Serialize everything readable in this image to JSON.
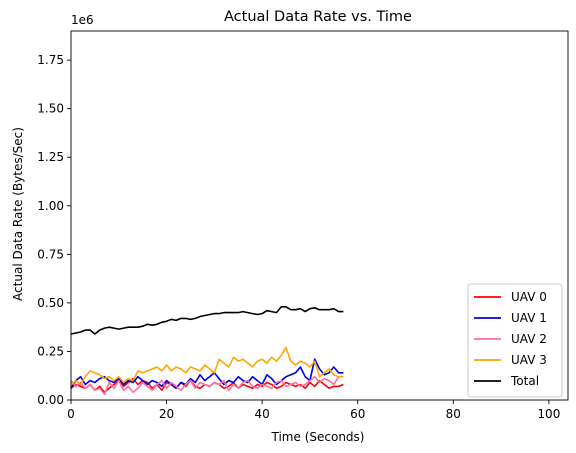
{
  "chart_data": {
    "type": "line",
    "title": "Actual Data Rate vs. Time",
    "xlabel": "Time (Seconds)",
    "ylabel": "Actual Data Rate (Bytes/Sec)",
    "offset_label": "1e6",
    "xlim": [
      0,
      104
    ],
    "ylim": [
      0,
      1.9
    ],
    "y_scale_factor": 1000000,
    "x_ticks": [
      0,
      20,
      40,
      60,
      80,
      100
    ],
    "x_tick_labels": [
      "0",
      "20",
      "40",
      "60",
      "80",
      "100"
    ],
    "y_ticks": [
      0,
      0.25,
      0.5,
      0.75,
      1.0,
      1.25,
      1.5,
      1.75
    ],
    "y_tick_labels": [
      "0.00",
      "0.25",
      "0.50",
      "0.75",
      "1.00",
      "1.25",
      "1.50",
      "1.75"
    ],
    "grid": false,
    "legend_position": "lower-right",
    "x": [
      0,
      1,
      2,
      3,
      4,
      5,
      6,
      7,
      8,
      9,
      10,
      11,
      12,
      13,
      14,
      15,
      16,
      17,
      18,
      19,
      20,
      21,
      22,
      23,
      24,
      25,
      26,
      27,
      28,
      29,
      30,
      31,
      32,
      33,
      34,
      35,
      36,
      37,
      38,
      39,
      40,
      41,
      42,
      43,
      44,
      45,
      46,
      47,
      48,
      49,
      50,
      51,
      52,
      53,
      54,
      55,
      56,
      57
    ],
    "series": [
      {
        "name": "UAV 0",
        "color": "#ff0000",
        "values": [
          0.06,
          0.08,
          0.07,
          0.06,
          0.08,
          0.05,
          0.07,
          0.04,
          0.06,
          0.08,
          0.1,
          0.07,
          0.09,
          0.11,
          0.08,
          0.1,
          0.09,
          0.06,
          0.08,
          0.05,
          0.09,
          0.08,
          0.06,
          0.09,
          0.07,
          0.1,
          0.07,
          0.06,
          0.08,
          0.07,
          0.09,
          0.08,
          0.06,
          0.07,
          0.09,
          0.06,
          0.08,
          0.07,
          0.06,
          0.08,
          0.07,
          0.09,
          0.08,
          0.06,
          0.07,
          0.09,
          0.08,
          0.07,
          0.08,
          0.06,
          0.09,
          0.07,
          0.1,
          0.08,
          0.06,
          0.07,
          0.07,
          0.08
        ]
      },
      {
        "name": "UAV 1",
        "color": "#0000e0",
        "values": [
          0.06,
          0.1,
          0.12,
          0.08,
          0.1,
          0.09,
          0.11,
          0.12,
          0.1,
          0.09,
          0.11,
          0.08,
          0.1,
          0.09,
          0.12,
          0.1,
          0.08,
          0.1,
          0.09,
          0.07,
          0.1,
          0.08,
          0.06,
          0.09,
          0.08,
          0.11,
          0.09,
          0.13,
          0.1,
          0.12,
          0.14,
          0.11,
          0.08,
          0.1,
          0.09,
          0.12,
          0.1,
          0.09,
          0.12,
          0.1,
          0.08,
          0.13,
          0.11,
          0.08,
          0.1,
          0.12,
          0.13,
          0.14,
          0.17,
          0.12,
          0.1,
          0.21,
          0.16,
          0.13,
          0.14,
          0.17,
          0.14,
          0.14
        ]
      },
      {
        "name": "UAV 2",
        "color": "#ff6f9f",
        "values": [
          0.1,
          0.07,
          0.09,
          0.06,
          0.08,
          0.05,
          0.06,
          0.03,
          0.09,
          0.06,
          0.1,
          0.05,
          0.07,
          0.04,
          0.06,
          0.09,
          0.07,
          0.05,
          0.08,
          0.1,
          0.06,
          0.09,
          0.07,
          0.05,
          0.08,
          0.1,
          0.06,
          0.09,
          0.08,
          0.07,
          0.09,
          0.08,
          0.1,
          0.05,
          0.08,
          0.06,
          0.09,
          0.1,
          0.07,
          0.06,
          0.08,
          0.07,
          0.06,
          0.09,
          0.1,
          0.07,
          0.08,
          0.09,
          0.07,
          0.08,
          0.1,
          0.12,
          0.09,
          0.11,
          0.1,
          0.08,
          0.12,
          0.12
        ]
      },
      {
        "name": "UAV 3",
        "color": "#ffa500",
        "values": [
          0.08,
          0.1,
          0.08,
          0.12,
          0.15,
          0.14,
          0.13,
          0.11,
          0.12,
          0.1,
          0.12,
          0.09,
          0.11,
          0.1,
          0.15,
          0.14,
          0.15,
          0.16,
          0.17,
          0.15,
          0.18,
          0.15,
          0.17,
          0.16,
          0.14,
          0.17,
          0.16,
          0.15,
          0.18,
          0.16,
          0.14,
          0.21,
          0.19,
          0.17,
          0.22,
          0.2,
          0.21,
          0.19,
          0.17,
          0.2,
          0.21,
          0.19,
          0.22,
          0.2,
          0.23,
          0.27,
          0.2,
          0.18,
          0.2,
          0.19,
          0.17,
          0.2,
          0.12,
          0.14,
          0.16,
          0.13,
          0.12,
          0.12
        ]
      },
      {
        "name": "Total",
        "color": "#000000",
        "values": [
          0.34,
          0.345,
          0.35,
          0.36,
          0.36,
          0.34,
          0.36,
          0.37,
          0.375,
          0.37,
          0.365,
          0.37,
          0.375,
          0.375,
          0.375,
          0.38,
          0.39,
          0.385,
          0.39,
          0.4,
          0.405,
          0.415,
          0.41,
          0.42,
          0.42,
          0.415,
          0.42,
          0.43,
          0.435,
          0.44,
          0.445,
          0.445,
          0.45,
          0.45,
          0.45,
          0.45,
          0.455,
          0.45,
          0.445,
          0.44,
          0.445,
          0.46,
          0.455,
          0.45,
          0.48,
          0.48,
          0.465,
          0.465,
          0.47,
          0.455,
          0.47,
          0.475,
          0.465,
          0.465,
          0.465,
          0.47,
          0.455,
          0.455
        ]
      }
    ]
  }
}
